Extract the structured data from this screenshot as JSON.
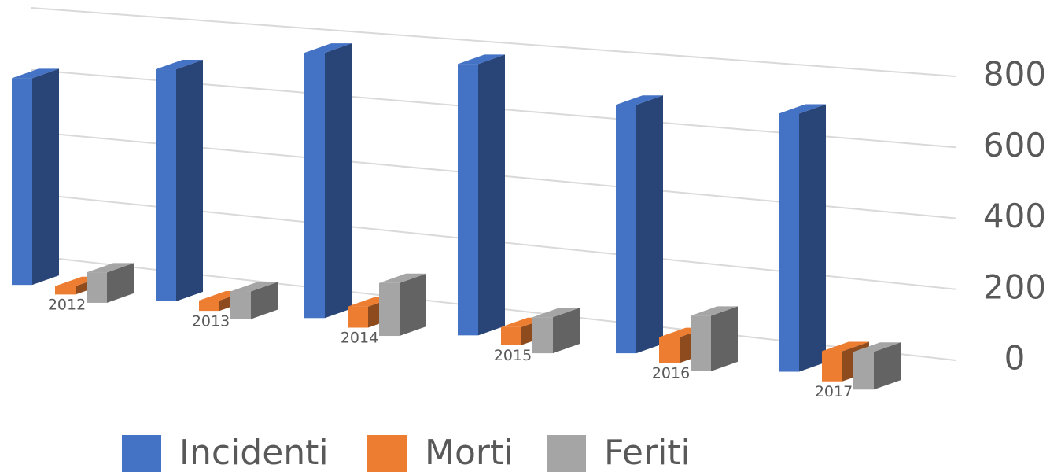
{
  "chart_data": {
    "type": "bar3d",
    "categories": [
      "2012",
      "2013",
      "2014",
      "2015",
      "2016",
      "2017"
    ],
    "series": [
      {
        "name": "Incidenti",
        "color": "#4472c4",
        "values": [
          620,
          680,
          760,
          760,
          680,
          690
        ]
      },
      {
        "name": "Morti",
        "color": "#ed7d31",
        "values": [
          25,
          30,
          60,
          50,
          70,
          80
        ]
      },
      {
        "name": "Feriti",
        "color": "#a5a5a5",
        "values": [
          90,
          80,
          150,
          100,
          150,
          100
        ]
      }
    ],
    "ylim": [
      0,
      800
    ],
    "yticks": [
      0,
      200,
      400,
      600,
      800
    ],
    "grid": true,
    "legend": "bottom"
  }
}
